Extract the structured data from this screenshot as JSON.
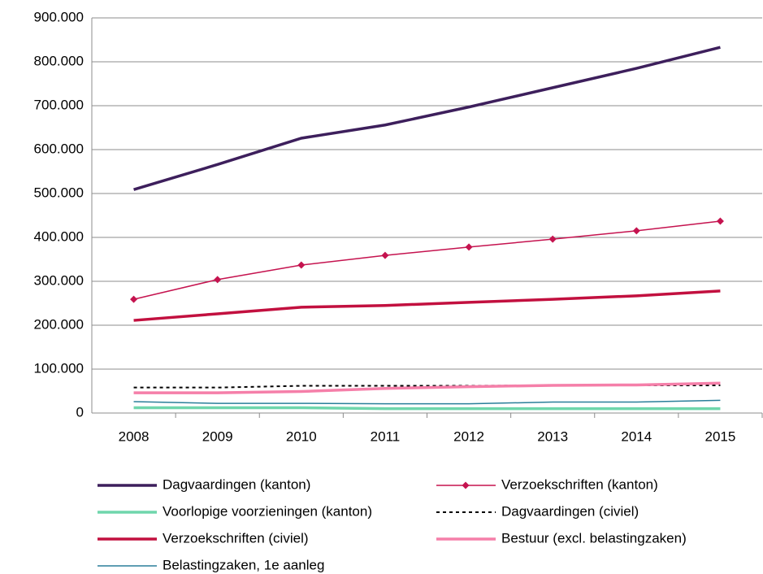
{
  "chart_data": {
    "type": "line",
    "categories": [
      "2008",
      "2009",
      "2010",
      "2011",
      "2012",
      "2013",
      "2014",
      "2015"
    ],
    "ylim": [
      0,
      900000
    ],
    "yticks": [
      0,
      {
        "value": 100000,
        "label": "100.000"
      },
      {
        "value": 200000,
        "label": "200.000"
      },
      {
        "value": 300000,
        "label": "300.000"
      },
      {
        "value": 400000,
        "label": "400.000"
      },
      {
        "value": 500000,
        "label": "500.000"
      },
      {
        "value": 600000,
        "label": "600.000"
      },
      {
        "value": 700000,
        "label": "700.000"
      },
      {
        "value": 800000,
        "label": "800.000"
      },
      {
        "value": 900000,
        "label": "900.000"
      }
    ],
    "grid": true,
    "legend": "bottom",
    "series": [
      {
        "name": "Dagvaardingen (kanton)",
        "color": "#3d1f5c",
        "width": 3.5,
        "values": [
          509000,
          566000,
          626000,
          656000,
          697000,
          741000,
          785000,
          833000
        ]
      },
      {
        "name": "Verzoekschriften (kanton)",
        "color": "#c5134f",
        "width": 1.5,
        "marker": "diamond",
        "values": [
          259000,
          304000,
          337000,
          359000,
          378000,
          396000,
          415000,
          437000
        ]
      },
      {
        "name": "Voorlopige voorzieningen (kanton)",
        "color": "#6fd6ac",
        "width": 3.5,
        "values": [
          12000,
          12000,
          12000,
          10000,
          10000,
          10000,
          10000,
          10000
        ]
      },
      {
        "name": "Dagvaardingen (civiel)",
        "color": "#000000",
        "width": 2,
        "dash": true,
        "values": [
          58000,
          58000,
          62000,
          62000,
          62000,
          63000,
          63000,
          63000
        ]
      },
      {
        "name": "Verzoekschriften (civiel)",
        "color": "#c2103f",
        "width": 3.5,
        "values": [
          211000,
          226000,
          241000,
          245000,
          252000,
          259000,
          267000,
          278000
        ]
      },
      {
        "name": "Bestuur (excl. belastingzaken)",
        "color": "#f57fa9",
        "width": 3.5,
        "values": [
          46000,
          46000,
          49000,
          56000,
          60000,
          63000,
          64000,
          68000
        ]
      },
      {
        "name": "Belastingzaken, 1e aanleg",
        "color": "#2a7f9a",
        "width": 1.5,
        "values": [
          26000,
          22000,
          22000,
          21000,
          21000,
          25000,
          25000,
          29000
        ]
      }
    ]
  }
}
